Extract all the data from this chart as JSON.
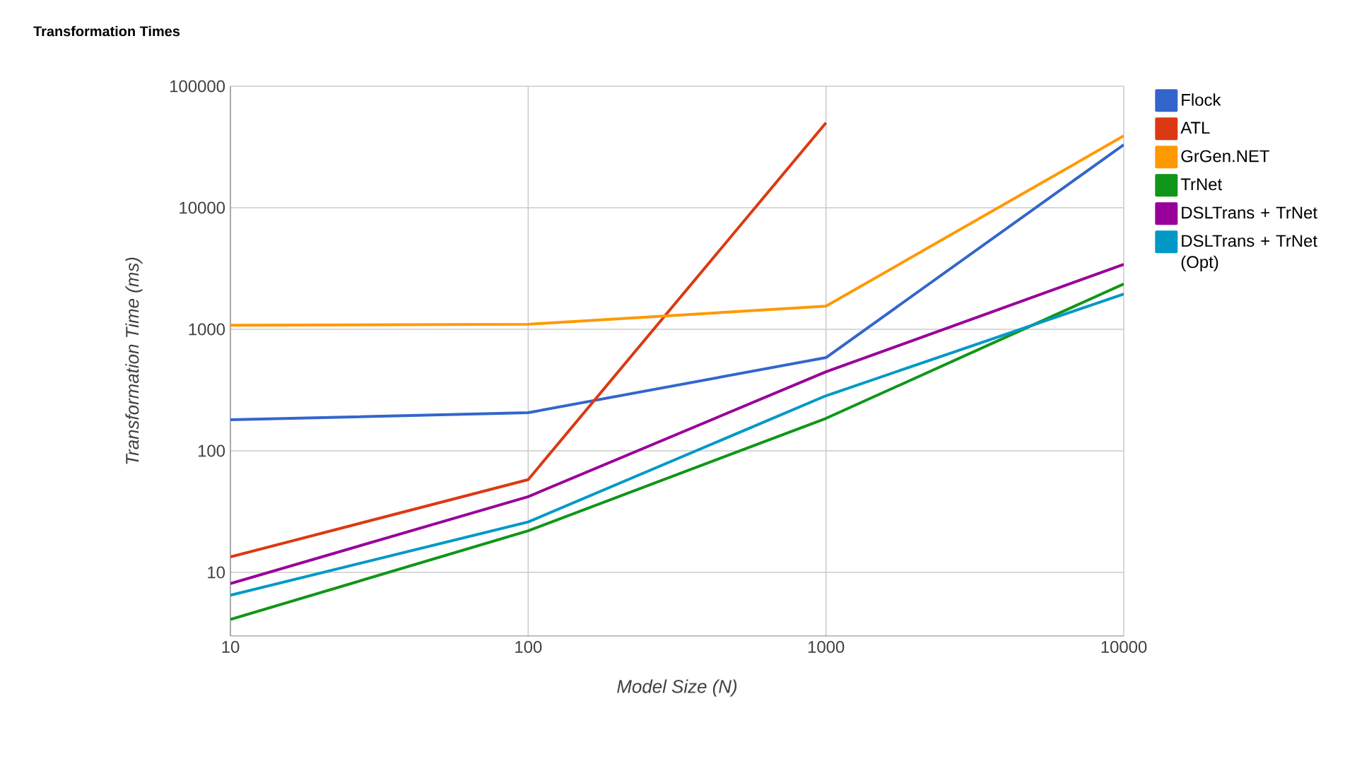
{
  "chart_data": {
    "type": "line",
    "title": "Transformation Times",
    "xlabel": "Model Size (N)",
    "ylabel": "Transformation Time (ms)",
    "x": [
      10,
      100,
      1000,
      10000
    ],
    "series": [
      {
        "name": "Flock",
        "color": "#3366cc",
        "values": [
          180,
          206,
          585,
          33000
        ]
      },
      {
        "name": "ATL",
        "color": "#dc3912",
        "values": [
          13.4,
          58,
          50000,
          null
        ]
      },
      {
        "name": "GrGen.NET",
        "color": "#ff9900",
        "values": [
          1080,
          1100,
          1550,
          39000
        ]
      },
      {
        "name": "TrNet",
        "color": "#109618",
        "values": [
          4.1,
          22,
          185,
          2360
        ]
      },
      {
        "name": "DSLTrans + TrNet",
        "color": "#990099",
        "values": [
          8.1,
          42,
          447,
          3420
        ]
      },
      {
        "name": "DSLTrans + TrNet (Opt)",
        "color": "#0099c6",
        "values": [
          6.5,
          26,
          284,
          1950
        ]
      }
    ],
    "xlim": [
      10,
      10000
    ],
    "ylim": [
      3,
      100000
    ],
    "xticks": [
      10,
      100,
      1000,
      10000
    ],
    "yticks": [
      10,
      100,
      1000,
      10000,
      100000
    ],
    "log": "xy",
    "grid": true,
    "legend": "right"
  }
}
